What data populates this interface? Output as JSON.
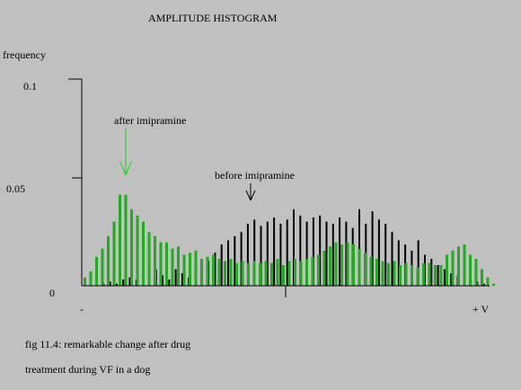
{
  "chart_data": {
    "type": "bar",
    "title": "AMPLITUDE HISTOGRAM",
    "ylabel": "frequency",
    "y_ticks": [
      "0.1",
      "0.05",
      "0"
    ],
    "x_ticks": [
      "-",
      "+ V"
    ],
    "ylim": [
      0,
      0.1
    ],
    "grid": false,
    "annotations": [
      {
        "text": "after imipramine",
        "points_to_series": 1
      },
      {
        "text": "before imipramine",
        "points_to_series": 0
      }
    ],
    "series": [
      {
        "color": "#000000",
        "values": [
          0.002,
          0.001,
          0.002,
          0.001,
          0.003,
          0.004,
          0.003,
          0.005,
          0.007,
          0.008,
          0.005,
          0.003,
          0.008,
          0.006,
          0.004,
          0.014,
          0.01,
          0.012,
          0.016,
          0.02,
          0.022,
          0.024,
          0.026,
          0.03,
          0.032,
          0.029,
          0.031,
          0.033,
          0.03,
          0.032,
          0.037,
          0.034,
          0.031,
          0.033,
          0.034,
          0.031,
          0.03,
          0.033,
          0.031,
          0.028,
          0.037,
          0.03,
          0.036,
          0.032,
          0.03,
          0.026,
          0.022,
          0.02,
          0.017,
          0.022,
          0.015,
          0.013,
          0.01,
          0.008,
          0.006,
          0.005,
          0.004,
          0.003,
          0.002,
          0.001
        ]
      },
      {
        "color": "#22aa22",
        "values": [
          0.004,
          0.007,
          0.014,
          0.018,
          0.024,
          0.031,
          0.044,
          0.044,
          0.037,
          0.034,
          0.031,
          0.026,
          0.024,
          0.021,
          0.021,
          0.018,
          0.019,
          0.015,
          0.016,
          0.017,
          0.013,
          0.014,
          0.015,
          0.013,
          0.012,
          0.013,
          0.011,
          0.012,
          0.011,
          0.012,
          0.011,
          0.012,
          0.011,
          0.013,
          0.01,
          0.012,
          0.013,
          0.012,
          0.013,
          0.014,
          0.015,
          0.017,
          0.019,
          0.021,
          0.02,
          0.021,
          0.02,
          0.018,
          0.016,
          0.014,
          0.013,
          0.012,
          0.011,
          0.012,
          0.01,
          0.011,
          0.01,
          0.009,
          0.011,
          0.011,
          0.01,
          0.01,
          0.015,
          0.017,
          0.019,
          0.02,
          0.015,
          0.013,
          0.008,
          0.004,
          0.001
        ]
      }
    ]
  },
  "caption": {
    "line1": "fig 11.4: remarkable change after drug",
    "line2": "treatment during VF in a dog"
  }
}
